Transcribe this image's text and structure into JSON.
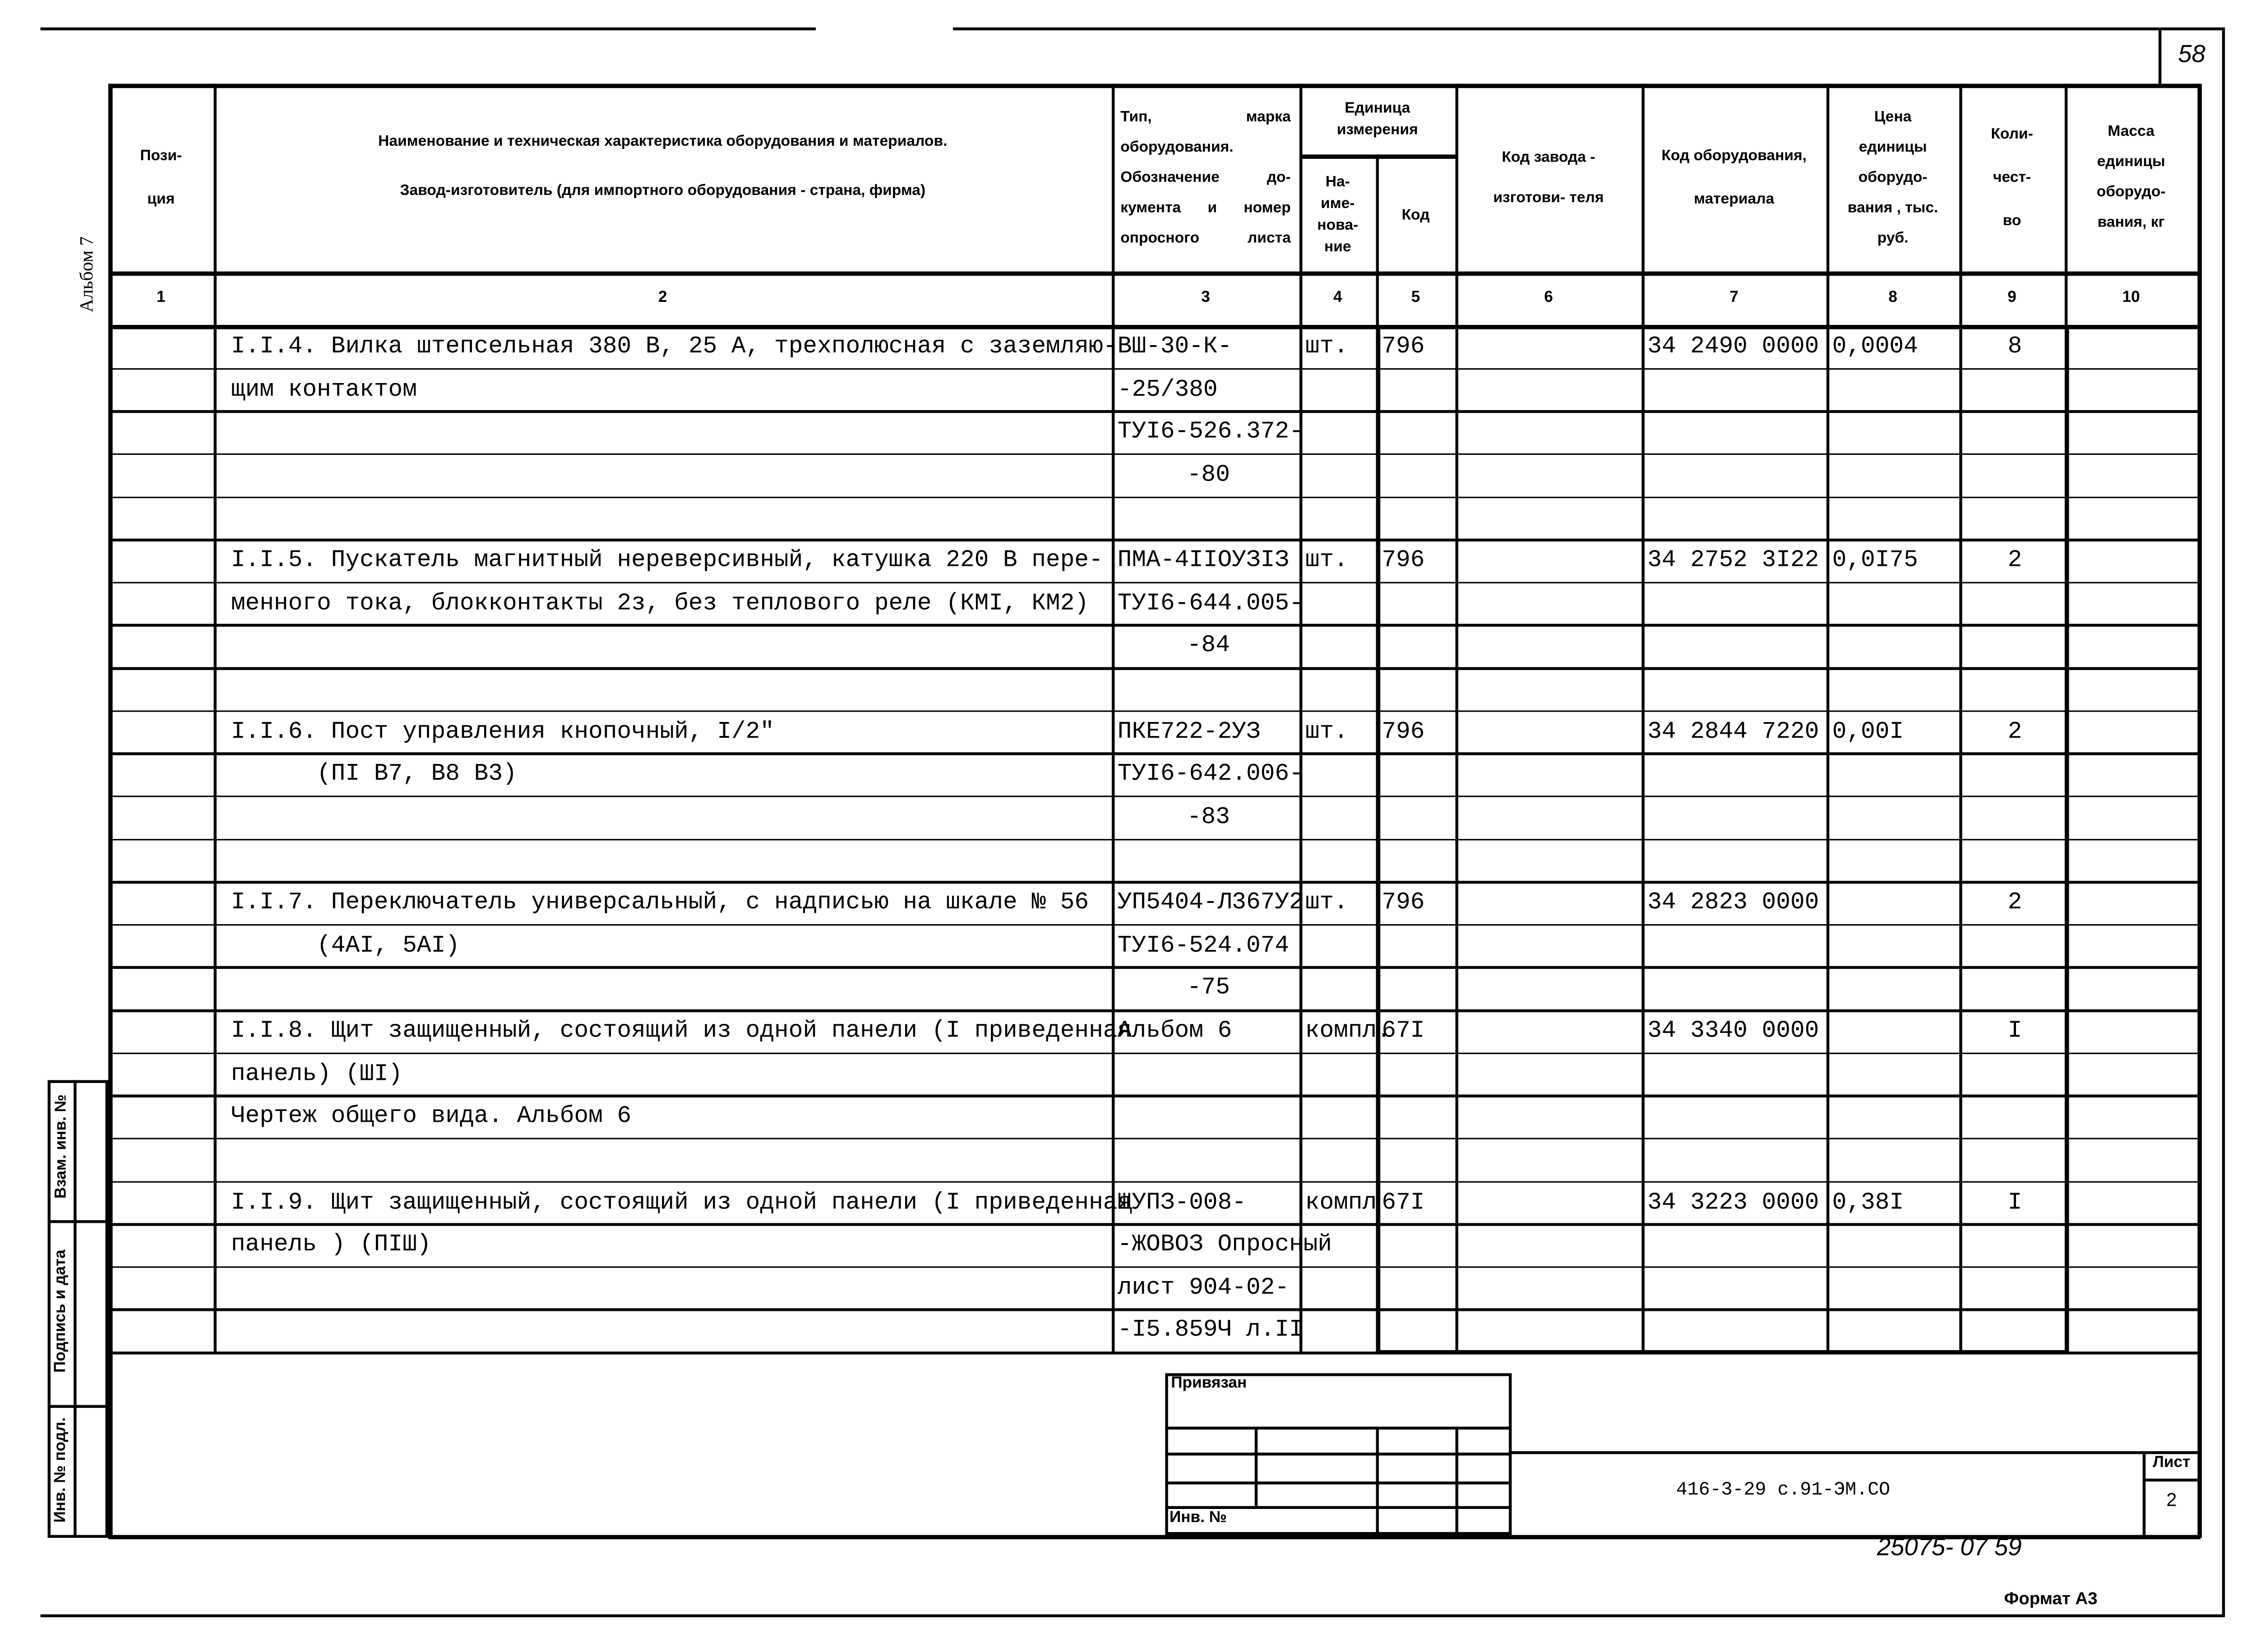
{
  "sheet_corner_number": "58",
  "side_label_album": "Альбом 7",
  "side_stamp": [
    "Взам. инв. №",
    "Подпись и дата",
    "Инв. № подл."
  ],
  "headers": {
    "c1": "Пози- ция",
    "c2_line1": "Наименование и техническая характеристика  оборудования и материалов.",
    "c2_line2": "Завод-изготовитель  (для импортного оборудования -  страна, фирма)",
    "c3": "Тип, марка оборудования. Обозначение до- кумента и номер опросного листа",
    "unit_group": "Единица измерения",
    "c4": "На- име- нова- ние",
    "c5": "Код",
    "c6": "Код завода - изготови- теля",
    "c7": "Код оборудования, материала",
    "c8": "Цена единицы оборудо- вания , тыс. руб.",
    "c9": "Коли- чест- во",
    "c10": "Масса единицы оборудо- вания, кг"
  },
  "column_numbers": [
    "1",
    "2",
    "3",
    "4",
    "5",
    "6",
    "7",
    "8",
    "9",
    "10"
  ],
  "rows": [
    [
      "",
      "I.I.4. Вилка штепсельная 380 В, 25 А, трехполюсная с заземляю-",
      "ВШ-30-К-",
      "шт.",
      "796",
      "",
      "34 2490 0000",
      "0,0004",
      "8",
      ""
    ],
    [
      "",
      "щим контактом",
      "-25/380",
      "",
      "",
      "",
      "",
      "",
      "",
      ""
    ],
    [
      "",
      "",
      "ТУI6-526.372-",
      "",
      "",
      "",
      "",
      "",
      "",
      ""
    ],
    [
      "",
      "",
      "-80",
      "",
      "",
      "",
      "",
      "",
      "",
      ""
    ],
    [
      "",
      "",
      "",
      "",
      "",
      "",
      "",
      "",
      "",
      ""
    ],
    [
      "",
      "I.I.5. Пускатель магнитный нереверсивный, катушка 220 В пере-",
      "ПМА-4IIOУЗIЗ",
      "шт.",
      "796",
      "",
      "34 2752 3I22",
      "0,0I75",
      "2",
      ""
    ],
    [
      "",
      "менного тока, блокконтакты 2з, без теплового реле (КМI, КМ2)",
      "ТУI6-644.005-",
      "",
      "",
      "",
      "",
      "",
      "",
      ""
    ],
    [
      "",
      "",
      "-84",
      "",
      "",
      "",
      "",
      "",
      "",
      ""
    ],
    [
      "",
      "",
      "",
      "",
      "",
      "",
      "",
      "",
      "",
      ""
    ],
    [
      "",
      "I.I.6. Пост управления кнопочный, I/2\"",
      "ПКЕ722-2УЗ",
      "шт.",
      "796",
      "",
      "34 2844 7220",
      "0,00I",
      "2",
      ""
    ],
    [
      "",
      "      (ПI В7, В8 В3)",
      "ТУI6-642.006-",
      "",
      "",
      "",
      "",
      "",
      "",
      ""
    ],
    [
      "",
      "",
      "-83",
      "",
      "",
      "",
      "",
      "",
      "",
      ""
    ],
    [
      "",
      "",
      "",
      "",
      "",
      "",
      "",
      "",
      "",
      ""
    ],
    [
      "",
      "I.I.7. Переключатель универсальный, с надписью на шкале № 56",
      "УП5404-Л367У2",
      "шт.",
      "796",
      "",
      "34 2823 0000",
      "",
      "2",
      ""
    ],
    [
      "",
      "      (4АI, 5АI)",
      "ТУI6-524.074",
      "",
      "",
      "",
      "",
      "",
      "",
      ""
    ],
    [
      "",
      "",
      "-75",
      "",
      "",
      "",
      "",
      "",
      "",
      ""
    ],
    [
      "",
      "I.I.8. Щит защищенный, состоящий из одной панели (I приведенная",
      "Альбом 6",
      "компл.",
      "67I",
      "",
      "34 3340 0000",
      "",
      "I",
      ""
    ],
    [
      "",
      "панель) (ШI)",
      "",
      "",
      "",
      "",
      "",
      "",
      "",
      ""
    ],
    [
      "",
      "Чертеж общего вида. Альбом 6",
      "",
      "",
      "",
      "",
      "",
      "",
      "",
      ""
    ],
    [
      "",
      "",
      "",
      "",
      "",
      "",
      "",
      "",
      "",
      ""
    ],
    [
      "",
      "I.I.9. Щит защищенный, состоящий из одной панели (I приведенная",
      "ЩУПЗ-008-",
      "компл",
      "67I",
      "",
      "34 3223 0000",
      "0,38I",
      "I",
      ""
    ],
    [
      "",
      "панель ) (ПIШ)",
      "-ЖОВОЗ Опросный",
      "",
      "",
      "",
      "",
      "",
      "",
      ""
    ],
    [
      "",
      "",
      "лист 904-02-",
      "",
      "",
      "",
      "",
      "",
      "",
      ""
    ],
    [
      "",
      "",
      "-I5.859Ч л.II",
      "",
      "",
      "",
      "",
      "",
      "",
      ""
    ]
  ],
  "stamp": {
    "bound_label": "Привязан",
    "inv_label": "Инв. №",
    "document_code": "416-3-29 с.91-ЭМ.СО",
    "sheet_label": "Лист",
    "sheet_number": "2"
  },
  "handwritten_number": "25075- 07  59",
  "format_label": "Формат А3"
}
